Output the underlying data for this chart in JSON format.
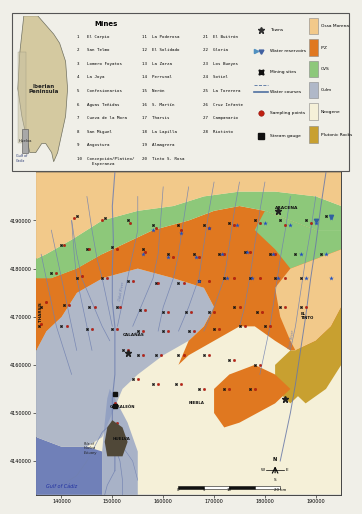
{
  "figure_bg": "#f0efe8",
  "geology_colors": {
    "Ossa_Morena": "#f2c98a",
    "IPZ": "#e07820",
    "CVS": "#8dc87a",
    "Culm": "#b0b8c8",
    "Neogene": "#f5f0d8",
    "Plutonic": "#c8a030",
    "Sea": "#8090c0",
    "Gulf": "#7080b8"
  },
  "river_color": "#7080b0",
  "river_lw": 0.5,
  "axis_ticks_x": [
    140000,
    150000,
    160000,
    170000,
    180000,
    190000
  ],
  "axis_ticks_y": [
    4140000,
    4150000,
    4160000,
    4170000,
    4180000,
    4190000
  ],
  "xlim": [
    135000,
    195000
  ],
  "ylim": [
    4133000,
    4200000
  ],
  "mines_col1": [
    "1   El Carpio",
    "2   San Telmo",
    "3   Lomero Foyatos",
    "4   La Joya",
    "5   Confesionarios",
    "6   Aguas Teñidas",
    "7   Cueva de la Mora",
    "8   San Miguel",
    "9   Angostura",
    "10  Concepción/Platino/\n      Esperanza"
  ],
  "mines_col2": [
    "11  La Poderosa",
    "12  El Solidado",
    "13  La Zarza",
    "14  Perrunal",
    "15  Nerón",
    "16  S. Martín",
    "17  Tharsis",
    "18  La Lapilla",
    "19  Almagrera",
    "20  Tinto S. Rosa"
  ],
  "mines_col3": [
    "21  El Buitrón",
    "22  Gloria",
    "23  Los Bueyes",
    "24  Sotiel",
    "25  La Torerera",
    "26  Cruz Infante",
    "27  Campanario",
    "28  Riotinto"
  ],
  "geol_legend": [
    {
      "name": "Ossa Morena",
      "color": "#f2c98a"
    },
    {
      "name": "IPZ",
      "color": "#e07820"
    },
    {
      "name": "CVS",
      "color": "#8dc87a"
    },
    {
      "name": "Culm",
      "color": "#b0b8c8"
    },
    {
      "name": "Neogene",
      "color": "#f5f0d8"
    },
    {
      "name": "Plutonic Rocks",
      "color": "#c8a030"
    }
  ],
  "symbol_legend": [
    {
      "name": "Towns",
      "type": "star",
      "color": "#303030"
    },
    {
      "name": "Water reservoirs",
      "type": "water_res",
      "color": "#4060a0"
    },
    {
      "name": "Mining sites",
      "type": "mine",
      "color": "#101010"
    },
    {
      "name": "Water courses",
      "type": "line",
      "color": "#5070a0"
    },
    {
      "name": "Sampling points",
      "type": "circle",
      "color": "#c02010"
    },
    {
      "name": "Stream gauge",
      "type": "square",
      "color": "#101010"
    }
  ],
  "inset_bg": "#ccd8e8",
  "inset_land": "#d4c9a0",
  "inset_huelva": "#a0a0a0"
}
